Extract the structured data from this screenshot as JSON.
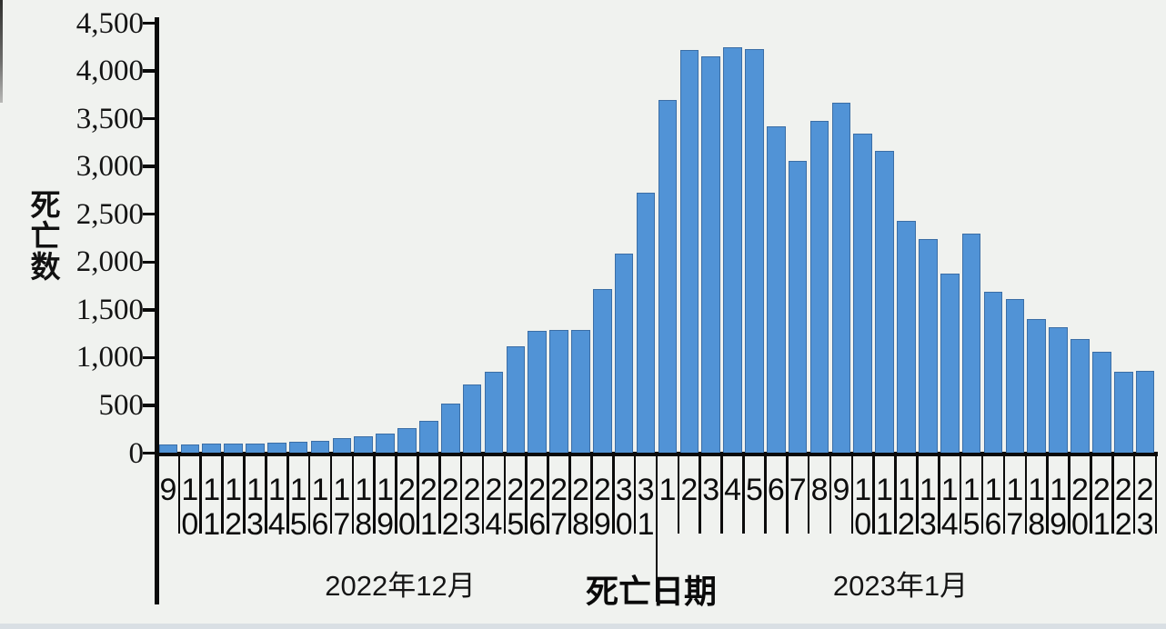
{
  "chart_data": {
    "type": "bar",
    "title": "",
    "ylabel": "死亡数",
    "xlabel": "死亡日期",
    "ylim": [
      0,
      4500
    ],
    "ytick_interval": 500,
    "ytick_labels": [
      "4,500",
      "4,000",
      "3,500",
      "3,000",
      "2,500",
      "2,000",
      "1,500",
      "1,000",
      "500",
      "0"
    ],
    "grid": false,
    "legend": "none",
    "bar_color": "#5193d6",
    "bar_border_color": "#3b6ea6",
    "axis_color": "#0b0b0b",
    "group_labels": [
      {
        "label": "2022年12月",
        "range": "Dec 9-31"
      },
      {
        "label": "2023年1月",
        "range": "Jan 1-23"
      }
    ],
    "categories": [
      "9",
      "10",
      "11",
      "12",
      "13",
      "14",
      "15",
      "16",
      "17",
      "18",
      "19",
      "20",
      "21",
      "22",
      "23",
      "24",
      "25",
      "26",
      "27",
      "28",
      "29",
      "30",
      "31",
      "1",
      "2",
      "3",
      "4",
      "5",
      "6",
      "7",
      "8",
      "9",
      "10",
      "11",
      "12",
      "13",
      "14",
      "15",
      "16",
      "17",
      "18",
      "19",
      "20",
      "21",
      "22",
      "23"
    ],
    "values": [
      90,
      95,
      100,
      100,
      100,
      105,
      115,
      130,
      160,
      175,
      200,
      260,
      335,
      515,
      715,
      850,
      1120,
      1280,
      1290,
      1290,
      1720,
      2090,
      2730,
      3700,
      4220,
      4150,
      4250,
      4230,
      3420,
      3060,
      3480,
      3670,
      3340,
      3160,
      2430,
      2240,
      1880,
      2300,
      1690,
      1615,
      1400,
      1320,
      1190,
      1060,
      855,
      860
    ]
  }
}
